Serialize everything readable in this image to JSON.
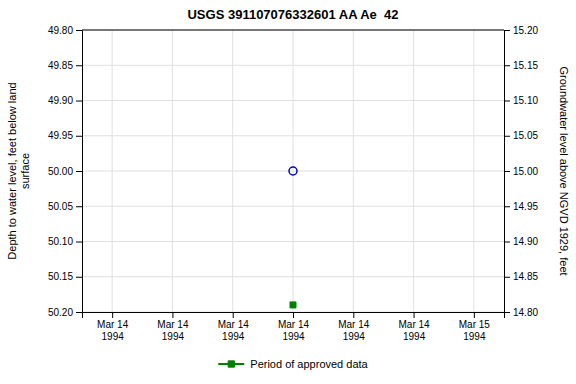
{
  "chart_data": {
    "type": "scatter",
    "title": "USGS 391107076332601 AA Ae  42",
    "ylabel": "Depth to water level, feet below land\nsurface",
    "y2label": "Groundwater level above NGVD 1929, feet",
    "categories": [
      "Mar 14\n1994",
      "Mar 14\n1994",
      "Mar 14\n1994",
      "Mar 14\n1994",
      "Mar 14\n1994",
      "Mar 14\n1994",
      "Mar 15\n1994"
    ],
    "series": [
      {
        "values": [
          null,
          null,
          null,
          50.0,
          null,
          null,
          null
        ],
        "color": "#0000cc",
        "marker": "circle-open"
      },
      {
        "name": "Period of approved data",
        "values": [
          null,
          null,
          null,
          50.19,
          null,
          null,
          null
        ],
        "color": "#008000",
        "marker": "square"
      }
    ],
    "ylim": [
      50.2,
      49.8
    ],
    "yticks": [
      {
        "value": 49.8,
        "label": "49.80"
      },
      {
        "value": 49.85,
        "label": "49.85"
      },
      {
        "value": 49.9,
        "label": "49.90"
      },
      {
        "value": 49.95,
        "label": "49.95"
      },
      {
        "value": 50.0,
        "label": "50.00"
      },
      {
        "value": 50.05,
        "label": "50.05"
      },
      {
        "value": 50.1,
        "label": "50.10"
      },
      {
        "value": 50.15,
        "label": "50.15"
      },
      {
        "value": 50.2,
        "label": "50.20"
      }
    ],
    "y2lim": [
      14.8,
      15.2
    ],
    "y2ticks": [
      {
        "value": 14.8,
        "label": "14.80"
      },
      {
        "value": 14.85,
        "label": "14.85"
      },
      {
        "value": 14.9,
        "label": "14.90"
      },
      {
        "value": 14.95,
        "label": "14.95"
      },
      {
        "value": 15.0,
        "label": "15.00"
      },
      {
        "value": 15.05,
        "label": "15.05"
      },
      {
        "value": 15.1,
        "label": "15.10"
      },
      {
        "value": 15.15,
        "label": "15.15"
      },
      {
        "value": 15.2,
        "label": "15.20"
      }
    ],
    "grid": true,
    "legend": "bottom"
  }
}
